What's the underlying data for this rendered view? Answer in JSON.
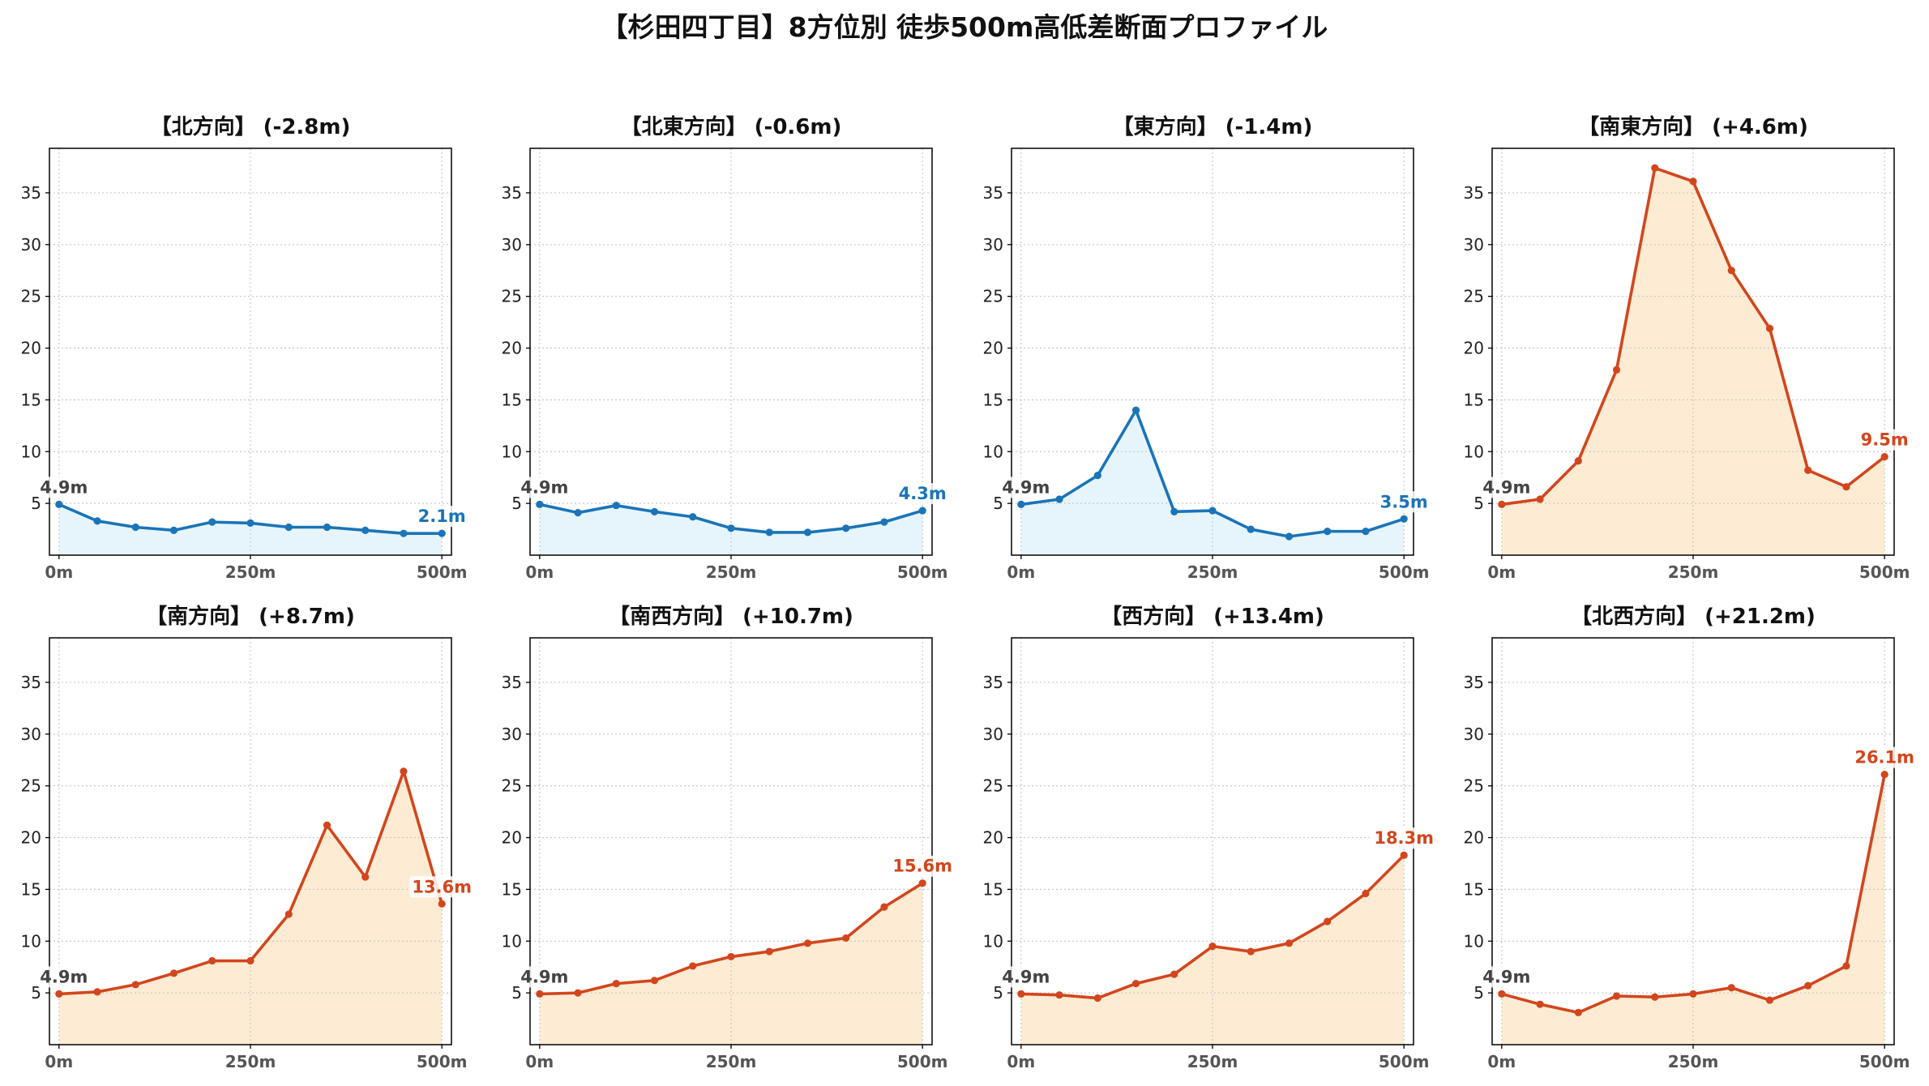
{
  "title": "【杉田四丁目】8方位別 徒歩500m高低差断面プロファイル",
  "colors": {
    "rise_line": "#d2461d",
    "rise_fill": "#fdecd3",
    "fall_line": "#1a74b8",
    "fall_fill": "#e6f5fb",
    "start_label": "#444444",
    "frame": "#000000"
  },
  "chart_data": [
    {
      "type": "line",
      "title": "【北方向】 (-2.8m)",
      "trend": "fall",
      "x": [
        0,
        50,
        100,
        150,
        200,
        250,
        300,
        350,
        400,
        450,
        500
      ],
      "y": [
        4.9,
        3.3,
        2.7,
        2.4,
        3.2,
        3.1,
        2.7,
        2.7,
        2.4,
        2.1,
        2.1
      ],
      "xlim": [
        -12.5,
        512.5
      ],
      "ylim": [
        0,
        39.3
      ],
      "x_ticks": [
        0,
        250,
        500
      ],
      "x_tick_labels": [
        "0m",
        "250m",
        "500m"
      ],
      "y_ticks": [
        5,
        10,
        15,
        20,
        25,
        30,
        35
      ],
      "start_label": "4.9m",
      "end_label": "2.1m",
      "grid": true,
      "filled": true
    },
    {
      "type": "line",
      "title": "【北東方向】 (-0.6m)",
      "trend": "fall",
      "x": [
        0,
        50,
        100,
        150,
        200,
        250,
        300,
        350,
        400,
        450,
        500
      ],
      "y": [
        4.9,
        4.1,
        4.8,
        4.2,
        3.7,
        2.6,
        2.2,
        2.2,
        2.6,
        3.2,
        4.3
      ],
      "xlim": [
        -12.5,
        512.5
      ],
      "ylim": [
        0,
        39.3
      ],
      "x_ticks": [
        0,
        250,
        500
      ],
      "x_tick_labels": [
        "0m",
        "250m",
        "500m"
      ],
      "y_ticks": [
        5,
        10,
        15,
        20,
        25,
        30,
        35
      ],
      "start_label": "4.9m",
      "end_label": "4.3m",
      "grid": true,
      "filled": true
    },
    {
      "type": "line",
      "title": "【東方向】 (-1.4m)",
      "trend": "fall",
      "x": [
        0,
        50,
        100,
        150,
        200,
        250,
        300,
        350,
        400,
        450,
        500
      ],
      "y": [
        4.9,
        5.4,
        7.7,
        14.0,
        4.2,
        4.3,
        2.5,
        1.8,
        2.3,
        2.3,
        3.5
      ],
      "xlim": [
        -12.5,
        512.5
      ],
      "ylim": [
        0,
        39.3
      ],
      "x_ticks": [
        0,
        250,
        500
      ],
      "x_tick_labels": [
        "0m",
        "250m",
        "500m"
      ],
      "y_ticks": [
        5,
        10,
        15,
        20,
        25,
        30,
        35
      ],
      "start_label": "4.9m",
      "end_label": "3.5m",
      "grid": true,
      "filled": true
    },
    {
      "type": "line",
      "title": "【南東方向】 (+4.6m)",
      "trend": "rise",
      "x": [
        0,
        50,
        100,
        150,
        200,
        250,
        300,
        350,
        400,
        450,
        500
      ],
      "y": [
        4.9,
        5.4,
        9.1,
        17.9,
        37.4,
        36.1,
        27.5,
        21.9,
        8.2,
        6.6,
        9.5
      ],
      "xlim": [
        -12.5,
        512.5
      ],
      "ylim": [
        0,
        39.3
      ],
      "x_ticks": [
        0,
        250,
        500
      ],
      "x_tick_labels": [
        "0m",
        "250m",
        "500m"
      ],
      "y_ticks": [
        5,
        10,
        15,
        20,
        25,
        30,
        35
      ],
      "start_label": "4.9m",
      "end_label": "9.5m",
      "grid": true,
      "filled": true
    },
    {
      "type": "line",
      "title": "【南方向】 (+8.7m)",
      "trend": "rise",
      "x": [
        0,
        50,
        100,
        150,
        200,
        250,
        300,
        350,
        400,
        450,
        500
      ],
      "y": [
        4.9,
        5.1,
        5.8,
        6.9,
        8.1,
        8.1,
        12.6,
        21.2,
        16.2,
        26.4,
        13.6
      ],
      "xlim": [
        -12.5,
        512.5
      ],
      "ylim": [
        0,
        39.3
      ],
      "x_ticks": [
        0,
        250,
        500
      ],
      "x_tick_labels": [
        "0m",
        "250m",
        "500m"
      ],
      "y_ticks": [
        5,
        10,
        15,
        20,
        25,
        30,
        35
      ],
      "start_label": "4.9m",
      "end_label": "13.6m",
      "grid": true,
      "filled": true
    },
    {
      "type": "line",
      "title": "【南西方向】 (+10.7m)",
      "trend": "rise",
      "x": [
        0,
        50,
        100,
        150,
        200,
        250,
        300,
        350,
        400,
        450,
        500
      ],
      "y": [
        4.9,
        5.0,
        5.9,
        6.2,
        7.6,
        8.5,
        9.0,
        9.8,
        10.3,
        13.3,
        15.6
      ],
      "xlim": [
        -12.5,
        512.5
      ],
      "ylim": [
        0,
        39.3
      ],
      "x_ticks": [
        0,
        250,
        500
      ],
      "x_tick_labels": [
        "0m",
        "250m",
        "500m"
      ],
      "y_ticks": [
        5,
        10,
        15,
        20,
        25,
        30,
        35
      ],
      "start_label": "4.9m",
      "end_label": "15.6m",
      "grid": true,
      "filled": true
    },
    {
      "type": "line",
      "title": "【西方向】 (+13.4m)",
      "trend": "rise",
      "x": [
        0,
        50,
        100,
        150,
        200,
        250,
        300,
        350,
        400,
        450,
        500
      ],
      "y": [
        4.9,
        4.8,
        4.5,
        5.9,
        6.8,
        9.5,
        9.0,
        9.8,
        11.9,
        14.6,
        18.3
      ],
      "xlim": [
        -12.5,
        512.5
      ],
      "ylim": [
        0,
        39.3
      ],
      "x_ticks": [
        0,
        250,
        500
      ],
      "x_tick_labels": [
        "0m",
        "250m",
        "500m"
      ],
      "y_ticks": [
        5,
        10,
        15,
        20,
        25,
        30,
        35
      ],
      "start_label": "4.9m",
      "end_label": "18.3m",
      "grid": true,
      "filled": true
    },
    {
      "type": "line",
      "title": "【北西方向】 (+21.2m)",
      "trend": "rise",
      "x": [
        0,
        50,
        100,
        150,
        200,
        250,
        300,
        350,
        400,
        450,
        500
      ],
      "y": [
        4.9,
        3.9,
        3.1,
        4.7,
        4.6,
        4.9,
        5.5,
        4.3,
        5.7,
        7.6,
        26.1
      ],
      "xlim": [
        -12.5,
        512.5
      ],
      "ylim": [
        0,
        39.3
      ],
      "x_ticks": [
        0,
        250,
        500
      ],
      "x_tick_labels": [
        "0m",
        "250m",
        "500m"
      ],
      "y_ticks": [
        5,
        10,
        15,
        20,
        25,
        30,
        35
      ],
      "start_label": "4.9m",
      "end_label": "26.1m",
      "grid": true,
      "filled": true
    }
  ]
}
